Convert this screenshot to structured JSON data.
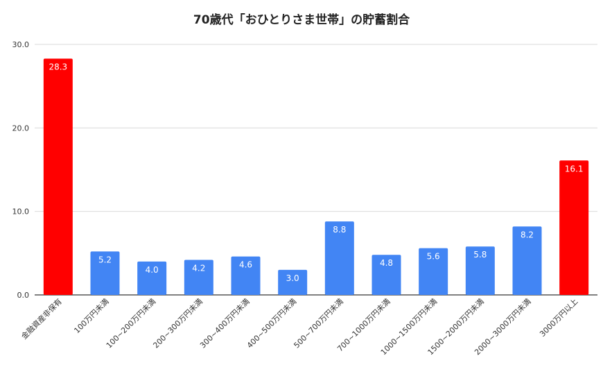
{
  "chart_data": {
    "type": "bar",
    "title": "70歳代「おひとりさま世帯」の貯蓄割合",
    "categories": [
      "金融資産非保有",
      "100万円未満",
      "100~200万円未満",
      "200~300万円未満",
      "300~400万円未満",
      "400~500万円未満",
      "500~700万円未満",
      "700~1000万円未満",
      "1000~1500万円未満",
      "1500~2000万円未満",
      "2000~3000万円未満",
      "3000万円以上"
    ],
    "values": [
      28.3,
      5.2,
      4.0,
      4.2,
      4.6,
      3.0,
      8.8,
      4.8,
      5.6,
      5.8,
      8.2,
      16.1
    ],
    "value_labels": [
      "28.3",
      "5.2",
      "4.0",
      "4.2",
      "4.6",
      "3.0",
      "8.8",
      "4.8",
      "5.6",
      "5.8",
      "8.2",
      "16.1"
    ],
    "highlight": [
      true,
      false,
      false,
      false,
      false,
      false,
      false,
      false,
      false,
      false,
      false,
      true
    ],
    "ylim": [
      0,
      30
    ],
    "yticks": [
      "0.0",
      "10.0",
      "20.0",
      "30.0"
    ],
    "ytick_values": [
      0,
      10,
      20,
      30
    ],
    "grid": true,
    "legend": "none",
    "colors": {
      "bar": "#4285f4",
      "highlight": "#ff0000",
      "grid": "#d9d9d9",
      "axis": "#333333",
      "text": "#333333"
    }
  }
}
